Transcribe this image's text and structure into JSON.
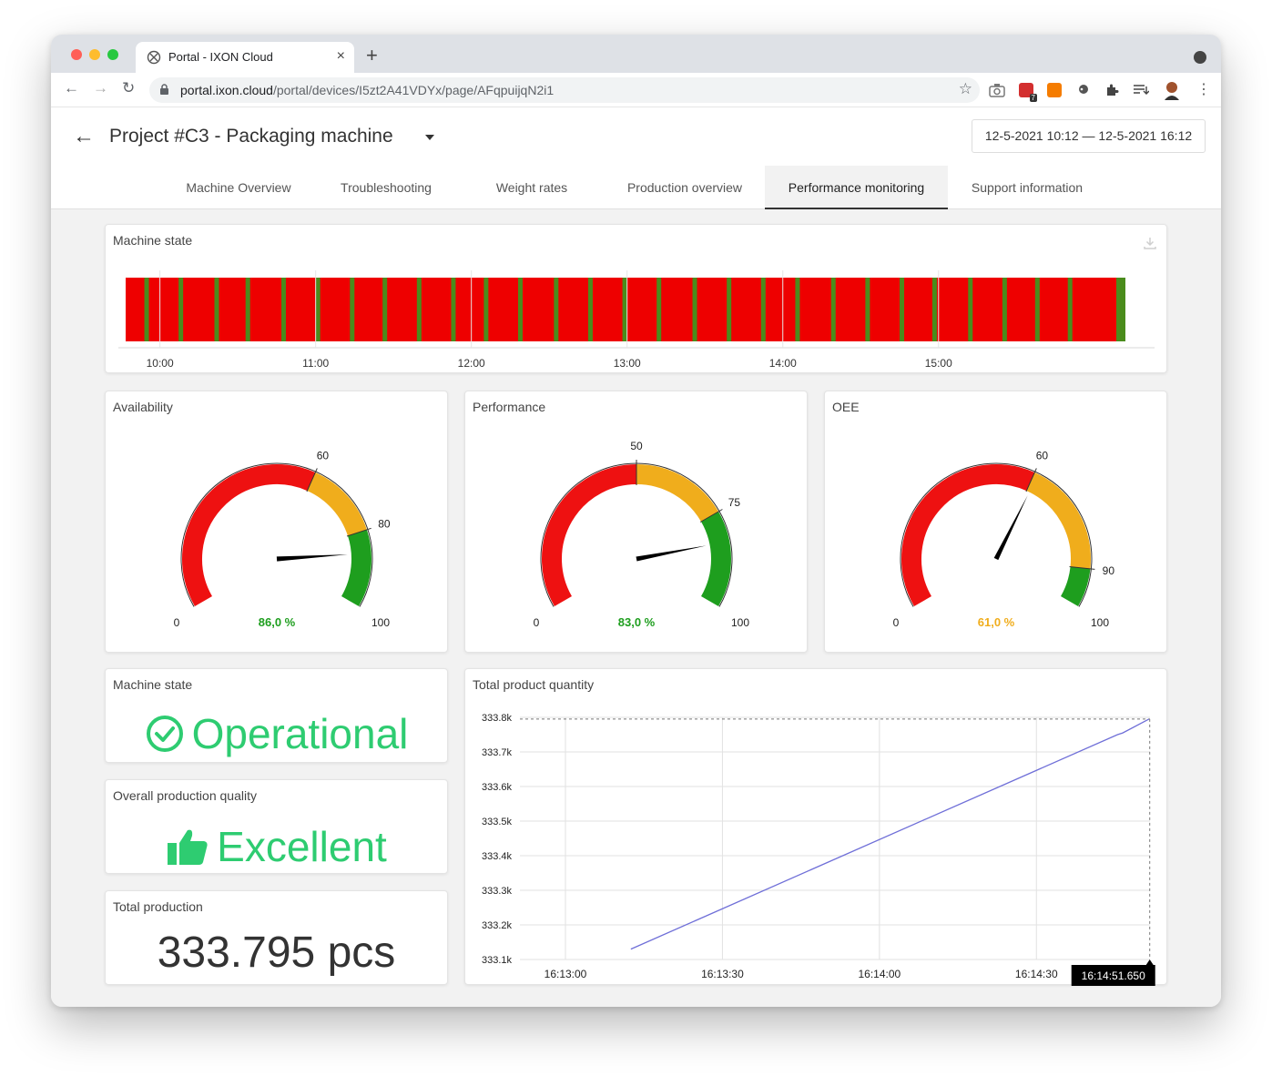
{
  "browser": {
    "tab_title": "Portal - IXON Cloud",
    "url_host": "portal.ixon.cloud",
    "url_path": "/portal/devices/I5zt2A41VDYx/page/AFqpuijqN2i1",
    "ext_badge": "7"
  },
  "header": {
    "project_title": "Project #C3 - Packaging machine",
    "date_range": "12-5-2021 10:12 — 12-5-2021 16:12"
  },
  "nav_tabs": [
    {
      "label": "Machine Overview",
      "active": false
    },
    {
      "label": "Troubleshooting",
      "active": false
    },
    {
      "label": "Weight rates",
      "active": false
    },
    {
      "label": "Production overview",
      "active": false
    },
    {
      "label": "Performance monitoring",
      "active": true
    },
    {
      "label": "Support information",
      "active": false
    }
  ],
  "machine_state_timeline": {
    "title": "Machine state",
    "ticks": [
      "10:00",
      "11:00",
      "12:00",
      "13:00",
      "14:00",
      "15:00"
    ],
    "colors": {
      "stopped": "#ee0000",
      "running": "#4a8c1c"
    },
    "tick_times": [
      10,
      11,
      12,
      13,
      14,
      15
    ],
    "time_range": [
      9.78,
      16.2
    ],
    "running_times": [
      9.9,
      10.12,
      10.35,
      10.55,
      10.78,
      11.0,
      11.22,
      11.43,
      11.65,
      11.87,
      12.08,
      12.3,
      12.53,
      12.75,
      12.97,
      13.19,
      13.42,
      13.64,
      13.86,
      14.08,
      14.31,
      14.53,
      14.75,
      14.96,
      15.19,
      15.41,
      15.62,
      15.83
    ]
  },
  "gauges": [
    {
      "title": "Availability",
      "value": 86.0,
      "value_label": "86,0 %",
      "value_color": "#1e9e1e",
      "min_label": "0",
      "max_label": "100",
      "thresholds": [
        60,
        80
      ],
      "threshold_labels": [
        "60",
        "80"
      ]
    },
    {
      "title": "Performance",
      "value": 83.0,
      "value_label": "83,0 %",
      "value_color": "#1e9e1e",
      "min_label": "0",
      "max_label": "100",
      "thresholds": [
        50,
        75
      ],
      "threshold_labels": [
        "50",
        "75"
      ]
    },
    {
      "title": "OEE",
      "value": 61.0,
      "value_label": "61,0 %",
      "value_color": "#f0ad1c",
      "min_label": "0",
      "max_label": "100",
      "thresholds": [
        60,
        90
      ],
      "threshold_labels": [
        "60",
        "90"
      ]
    }
  ],
  "gauge_colors": {
    "low": "#ee1111",
    "mid": "#f0ad1c",
    "high": "#1e9e1e"
  },
  "machine_state": {
    "title": "Machine state",
    "value": "Operational",
    "icon": "check-circle-icon"
  },
  "production_quality": {
    "title": "Overall production quality",
    "value": "Excellent",
    "icon": "thumbs-up-icon"
  },
  "total_production": {
    "title": "Total production",
    "value": "333.795 pcs"
  },
  "chart_data": {
    "type": "line",
    "title": "Total product quantity",
    "y_ticks": [
      "333.1k",
      "333.2k",
      "333.3k",
      "333.4k",
      "333.5k",
      "333.6k",
      "333.7k",
      "333.8k"
    ],
    "x_ticks": [
      "16:13:00",
      "16:13:30",
      "16:14:00",
      "16:14:30"
    ],
    "x_tick_seconds": [
      0,
      30,
      60,
      90
    ],
    "ylim": [
      333100,
      333800
    ],
    "xlim_seconds": [
      -8.7,
      111.7
    ],
    "series": [
      {
        "color": "#6f6fd8",
        "x_seconds": [
          12.5,
          105.5,
          106.5,
          111.5
        ],
        "values": [
          333130,
          333750,
          333755,
          333795
        ]
      }
    ],
    "crosshair_label": "16:14:51.650",
    "crosshair_x_seconds": 111.65,
    "crosshair_y": 333795
  }
}
